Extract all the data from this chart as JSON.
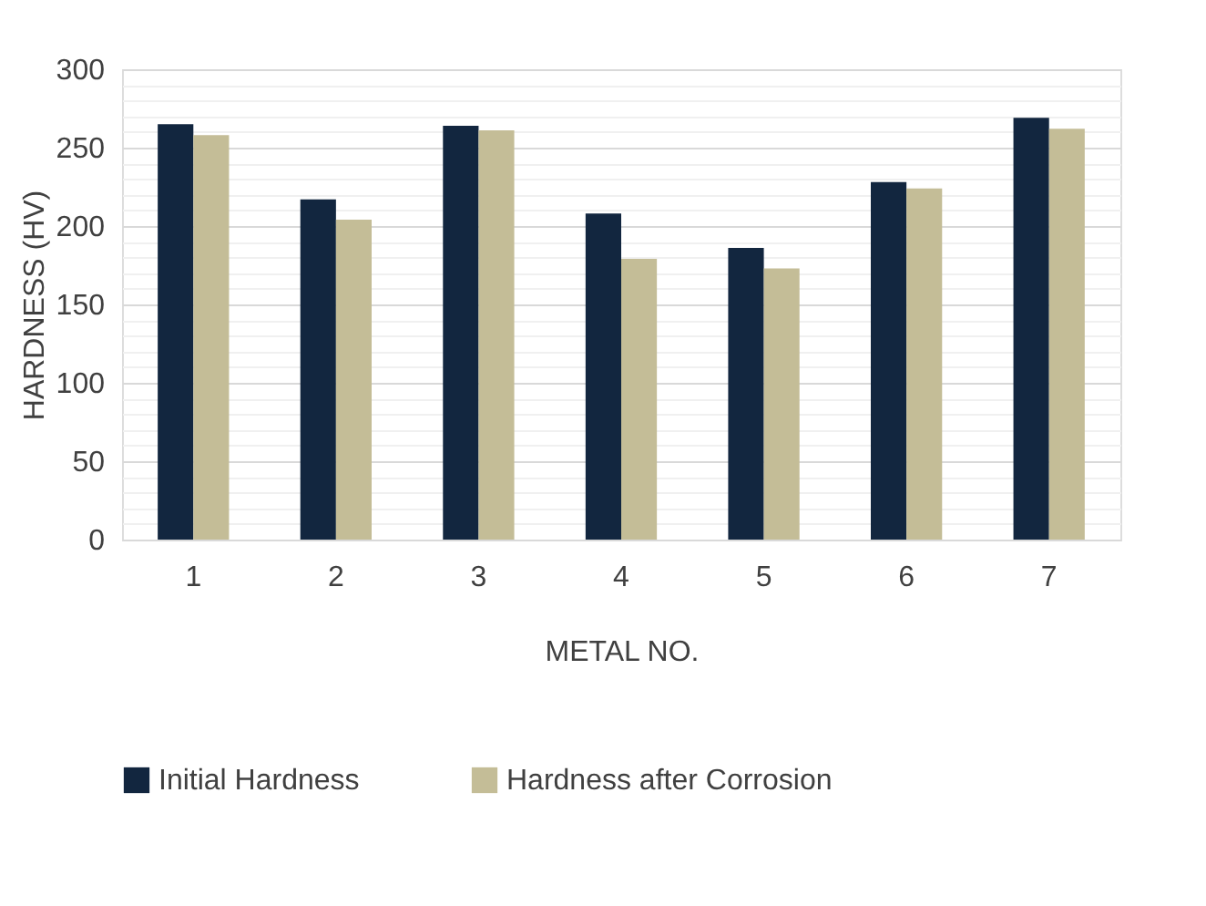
{
  "chart_data": {
    "type": "bar",
    "categories": [
      "1",
      "2",
      "3",
      "4",
      "5",
      "6",
      "7"
    ],
    "series": [
      {
        "name": "Initial Hardness",
        "color": "#12263f",
        "values": [
          265,
          217,
          264,
          208,
          186,
          228,
          269
        ]
      },
      {
        "name": "Hardness after Corrosion",
        "color": "#c4bd97",
        "values": [
          258,
          204,
          261,
          179,
          173,
          224,
          262
        ]
      }
    ],
    "xlabel": "METAL NO.",
    "ylabel": "HARDNESS (HV)",
    "ylim": [
      0,
      300
    ],
    "yticks": [
      0,
      {
        "value": 10,
        "label": null
      },
      {
        "value": 20,
        "label": null
      },
      {
        "value": 30,
        "label": null
      },
      {
        "value": 40,
        "label": null
      },
      50,
      {
        "value": 60,
        "label": null
      },
      {
        "value": 70,
        "label": null
      },
      {
        "value": 80,
        "label": null
      },
      {
        "value": 90,
        "label": null
      },
      100,
      {
        "value": 110,
        "label": null
      },
      {
        "value": 120,
        "label": null
      },
      {
        "value": 130,
        "label": null
      },
      {
        "value": 140,
        "label": null
      },
      150,
      {
        "value": 160,
        "label": null
      },
      {
        "value": 170,
        "label": null
      },
      {
        "value": 180,
        "label": null
      },
      {
        "value": 190,
        "label": null
      },
      200,
      {
        "value": 210,
        "label": null
      },
      {
        "value": 220,
        "label": null
      },
      {
        "value": 230,
        "label": null
      },
      {
        "value": 240,
        "label": null
      },
      250,
      {
        "value": 260,
        "label": null
      },
      {
        "value": 270,
        "label": null
      },
      {
        "value": 280,
        "label": null
      },
      {
        "value": 290,
        "label": null
      },
      300
    ],
    "grid": "y",
    "legend": "bottom"
  }
}
